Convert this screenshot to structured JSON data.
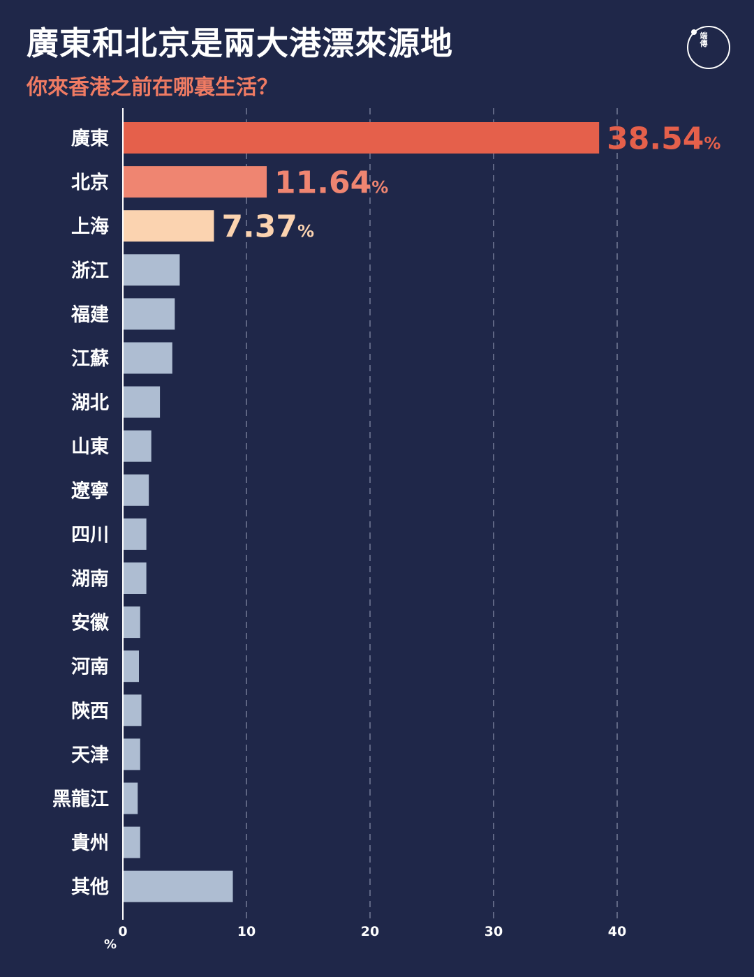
{
  "logo": {
    "text": "端\n傳"
  },
  "chart_data": {
    "type": "bar",
    "orientation": "horizontal",
    "title": "廣東和北京是兩大港漂來源地",
    "subtitle": "你來香港之前在哪裏生活？",
    "xlabel": "%",
    "ylabel": "",
    "xlim": [
      0,
      46
    ],
    "xticks": [
      0,
      10,
      20,
      30,
      40
    ],
    "grid": true,
    "categories": [
      "廣東",
      "北京",
      "上海",
      "浙江",
      "福建",
      "江蘇",
      "湖北",
      "山東",
      "遼寧",
      "四川",
      "湖南",
      "安徽",
      "河南",
      "陝西",
      "天津",
      "黑龍江",
      "貴州",
      "其他"
    ],
    "values": [
      38.54,
      11.64,
      7.37,
      4.6,
      4.2,
      4.0,
      3.0,
      2.3,
      2.1,
      1.9,
      1.9,
      1.4,
      1.3,
      1.5,
      1.4,
      1.2,
      1.4,
      8.9
    ],
    "labels": [
      "38.54",
      "11.64",
      "7.37",
      "",
      "",
      "",
      "",
      "",
      "",
      "",
      "",
      "",
      "",
      "",
      "",
      "",
      "",
      ""
    ],
    "label_unit": "%",
    "colors": [
      "#e5604b",
      "#ef8571",
      "#fbd3b0",
      "#aebdd2",
      "#aebdd2",
      "#aebdd2",
      "#aebdd2",
      "#aebdd2",
      "#aebdd2",
      "#aebdd2",
      "#aebdd2",
      "#aebdd2",
      "#aebdd2",
      "#aebdd2",
      "#aebdd2",
      "#aebdd2",
      "#aebdd2",
      "#aebdd2"
    ],
    "background": "#1f2749",
    "axis_color": "#ffffff",
    "grid_color": "#8a90aa"
  }
}
